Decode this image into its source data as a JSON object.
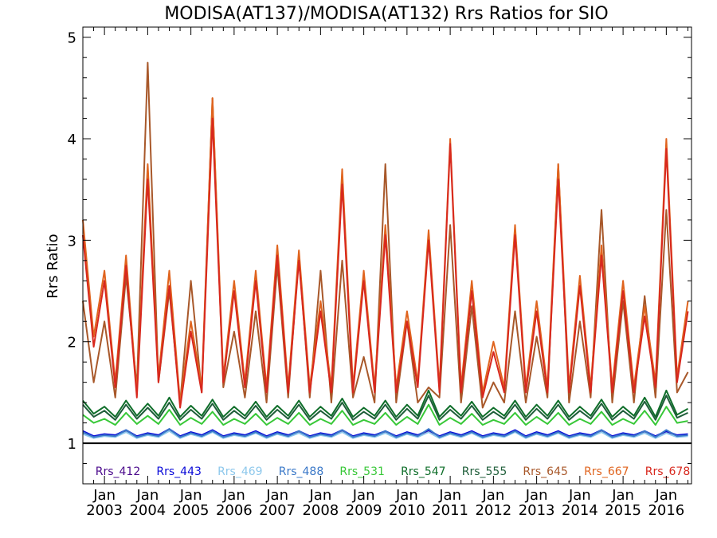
{
  "chart_data": {
    "type": "line",
    "title": "MODISA(AT137)/MODISA(AT132)  Rrs Ratios for SIO",
    "xlabel": "",
    "ylabel": "Rrs Ratio",
    "ylim": [
      0.6,
      5.1
    ],
    "yticks": [
      "1",
      "2",
      "3",
      "4",
      "5"
    ],
    "xlim": [
      "2002-07",
      "2016-08"
    ],
    "xticks": [
      {
        "month": "Jan",
        "year": "2003"
      },
      {
        "month": "Jan",
        "year": "2004"
      },
      {
        "month": "Jan",
        "year": "2005"
      },
      {
        "month": "Jan",
        "year": "2006"
      },
      {
        "month": "Jan",
        "year": "2007"
      },
      {
        "month": "Jan",
        "year": "2008"
      },
      {
        "month": "Jan",
        "year": "2009"
      },
      {
        "month": "Jan",
        "year": "2010"
      },
      {
        "month": "Jan",
        "year": "2011"
      },
      {
        "month": "Jan",
        "year": "2012"
      },
      {
        "month": "Jan",
        "year": "2013"
      },
      {
        "month": "Jan",
        "year": "2014"
      },
      {
        "month": "Jan",
        "year": "2015"
      },
      {
        "month": "Jan",
        "year": "2016"
      }
    ],
    "reference_line": 1,
    "grid": false,
    "legend_position": "bottom",
    "x": [
      "2002-07",
      "2002-10",
      "2003-01",
      "2003-04",
      "2003-07",
      "2003-10",
      "2004-01",
      "2004-04",
      "2004-07",
      "2004-10",
      "2005-01",
      "2005-04",
      "2005-07",
      "2005-10",
      "2006-01",
      "2006-04",
      "2006-07",
      "2006-10",
      "2007-01",
      "2007-04",
      "2007-07",
      "2007-10",
      "2008-01",
      "2008-04",
      "2008-07",
      "2008-10",
      "2009-01",
      "2009-04",
      "2009-07",
      "2009-10",
      "2010-01",
      "2010-04",
      "2010-07",
      "2010-10",
      "2011-01",
      "2011-04",
      "2011-07",
      "2011-10",
      "2012-01",
      "2012-04",
      "2012-07",
      "2012-10",
      "2013-01",
      "2013-04",
      "2013-07",
      "2013-10",
      "2014-01",
      "2014-04",
      "2014-07",
      "2014-10",
      "2015-01",
      "2015-04",
      "2015-07",
      "2015-10",
      "2016-01",
      "2016-04",
      "2016-07"
    ],
    "series": [
      {
        "name": "Rrs_412",
        "color": "#4b0a8c",
        "values": [
          1.1,
          1.06,
          1.08,
          1.07,
          1.12,
          1.06,
          1.09,
          1.07,
          1.13,
          1.06,
          1.1,
          1.07,
          1.12,
          1.06,
          1.09,
          1.07,
          1.11,
          1.06,
          1.1,
          1.07,
          1.11,
          1.06,
          1.09,
          1.07,
          1.12,
          1.06,
          1.09,
          1.07,
          1.11,
          1.06,
          1.1,
          1.07,
          1.12,
          1.06,
          1.1,
          1.07,
          1.11,
          1.06,
          1.09,
          1.07,
          1.12,
          1.06,
          1.1,
          1.07,
          1.11,
          1.06,
          1.09,
          1.07,
          1.12,
          1.06,
          1.09,
          1.07,
          1.11,
          1.06,
          1.11,
          1.07,
          1.08
        ]
      },
      {
        "name": "Rrs_443",
        "color": "#0a0ad8",
        "values": [
          1.12,
          1.07,
          1.09,
          1.08,
          1.13,
          1.07,
          1.1,
          1.08,
          1.14,
          1.07,
          1.11,
          1.08,
          1.13,
          1.07,
          1.1,
          1.08,
          1.12,
          1.07,
          1.11,
          1.08,
          1.12,
          1.07,
          1.1,
          1.08,
          1.13,
          1.07,
          1.1,
          1.08,
          1.12,
          1.07,
          1.11,
          1.08,
          1.13,
          1.07,
          1.11,
          1.08,
          1.12,
          1.07,
          1.1,
          1.08,
          1.13,
          1.07,
          1.11,
          1.08,
          1.12,
          1.07,
          1.1,
          1.08,
          1.13,
          1.07,
          1.1,
          1.08,
          1.12,
          1.07,
          1.12,
          1.08,
          1.09
        ]
      },
      {
        "name": "Rrs_469",
        "color": "#8ec8ec",
        "values": [
          1.09,
          1.05,
          1.07,
          1.06,
          1.11,
          1.05,
          1.08,
          1.06,
          1.12,
          1.05,
          1.09,
          1.06,
          1.11,
          1.05,
          1.08,
          1.06,
          1.1,
          1.05,
          1.09,
          1.06,
          1.1,
          1.05,
          1.08,
          1.06,
          1.11,
          1.05,
          1.08,
          1.06,
          1.1,
          1.05,
          1.09,
          1.06,
          1.11,
          1.05,
          1.09,
          1.06,
          1.1,
          1.05,
          1.08,
          1.06,
          1.11,
          1.05,
          1.09,
          1.06,
          1.1,
          1.05,
          1.08,
          1.06,
          1.11,
          1.05,
          1.08,
          1.06,
          1.1,
          1.05,
          1.1,
          1.06,
          1.07
        ]
      },
      {
        "name": "Rrs_488",
        "color": "#3a78c8",
        "values": [
          1.11,
          1.06,
          1.08,
          1.07,
          1.13,
          1.06,
          1.09,
          1.07,
          1.14,
          1.06,
          1.1,
          1.07,
          1.12,
          1.06,
          1.09,
          1.07,
          1.11,
          1.06,
          1.1,
          1.07,
          1.12,
          1.06,
          1.09,
          1.07,
          1.13,
          1.06,
          1.09,
          1.07,
          1.12,
          1.06,
          1.1,
          1.07,
          1.14,
          1.06,
          1.1,
          1.07,
          1.11,
          1.06,
          1.09,
          1.07,
          1.12,
          1.06,
          1.1,
          1.07,
          1.11,
          1.06,
          1.09,
          1.07,
          1.13,
          1.06,
          1.09,
          1.07,
          1.12,
          1.06,
          1.13,
          1.07,
          1.08
        ]
      },
      {
        "name": "Rrs_531",
        "color": "#38c838",
        "values": [
          1.28,
          1.2,
          1.24,
          1.18,
          1.3,
          1.19,
          1.27,
          1.19,
          1.33,
          1.18,
          1.25,
          1.19,
          1.31,
          1.18,
          1.24,
          1.19,
          1.29,
          1.18,
          1.25,
          1.19,
          1.3,
          1.18,
          1.24,
          1.19,
          1.32,
          1.18,
          1.23,
          1.19,
          1.3,
          1.18,
          1.26,
          1.19,
          1.38,
          1.18,
          1.25,
          1.19,
          1.29,
          1.18,
          1.23,
          1.19,
          1.3,
          1.18,
          1.26,
          1.19,
          1.3,
          1.18,
          1.24,
          1.19,
          1.31,
          1.18,
          1.24,
          1.19,
          1.32,
          1.18,
          1.36,
          1.2,
          1.22
        ]
      },
      {
        "name": "Rrs_547",
        "color": "#0f6e2a",
        "values": [
          1.42,
          1.29,
          1.36,
          1.26,
          1.42,
          1.27,
          1.39,
          1.27,
          1.45,
          1.26,
          1.37,
          1.27,
          1.43,
          1.26,
          1.36,
          1.27,
          1.41,
          1.26,
          1.37,
          1.27,
          1.42,
          1.26,
          1.36,
          1.27,
          1.44,
          1.26,
          1.35,
          1.27,
          1.42,
          1.26,
          1.38,
          1.27,
          1.52,
          1.26,
          1.37,
          1.27,
          1.41,
          1.26,
          1.35,
          1.27,
          1.42,
          1.26,
          1.38,
          1.27,
          1.42,
          1.26,
          1.36,
          1.27,
          1.43,
          1.26,
          1.36,
          1.27,
          1.45,
          1.26,
          1.52,
          1.28,
          1.34
        ]
      },
      {
        "name": "Rrs_555",
        "color": "#1f5e3a",
        "values": [
          1.38,
          1.26,
          1.32,
          1.23,
          1.38,
          1.24,
          1.35,
          1.24,
          1.4,
          1.23,
          1.33,
          1.24,
          1.39,
          1.23,
          1.32,
          1.24,
          1.37,
          1.23,
          1.33,
          1.24,
          1.38,
          1.23,
          1.32,
          1.24,
          1.4,
          1.23,
          1.31,
          1.24,
          1.38,
          1.23,
          1.34,
          1.24,
          1.47,
          1.23,
          1.33,
          1.24,
          1.37,
          1.23,
          1.31,
          1.24,
          1.38,
          1.23,
          1.34,
          1.24,
          1.38,
          1.23,
          1.32,
          1.24,
          1.39,
          1.23,
          1.32,
          1.24,
          1.41,
          1.23,
          1.47,
          1.25,
          1.3
        ]
      },
      {
        "name": "Rrs_645",
        "color": "#a8582a",
        "values": [
          2.4,
          1.6,
          2.2,
          1.45,
          2.65,
          1.55,
          4.75,
          1.6,
          2.5,
          1.4,
          2.6,
          1.5,
          4.4,
          1.55,
          2.1,
          1.45,
          2.3,
          1.4,
          2.75,
          1.45,
          2.85,
          1.45,
          2.7,
          1.4,
          2.8,
          1.45,
          1.85,
          1.4,
          3.75,
          1.4,
          2.2,
          1.4,
          1.55,
          1.45,
          3.15,
          1.4,
          2.35,
          1.35,
          1.6,
          1.4,
          2.3,
          1.4,
          2.05,
          1.45,
          3.75,
          1.4,
          2.2,
          1.45,
          3.3,
          1.4,
          2.4,
          1.4,
          2.45,
          1.45,
          3.3,
          1.5,
          1.7
        ]
      },
      {
        "name": "Rrs_667",
        "color": "#e0641e",
        "values": [
          3.2,
          2.05,
          2.7,
          1.6,
          2.85,
          1.5,
          3.75,
          1.65,
          2.7,
          1.4,
          2.2,
          1.55,
          4.4,
          1.65,
          2.6,
          1.6,
          2.7,
          1.55,
          2.95,
          1.55,
          2.9,
          1.55,
          2.4,
          1.55,
          3.7,
          1.55,
          2.7,
          1.55,
          3.15,
          1.55,
          2.3,
          1.6,
          3.1,
          1.55,
          4.0,
          1.55,
          2.6,
          1.5,
          2.0,
          1.55,
          3.15,
          1.55,
          2.4,
          1.55,
          3.75,
          1.55,
          2.65,
          1.55,
          2.95,
          1.55,
          2.6,
          1.55,
          2.35,
          1.6,
          4.0,
          1.65,
          2.4
        ]
      },
      {
        "name": "Rrs_678",
        "color": "#d8281e",
        "values": [
          3.05,
          1.95,
          2.6,
          1.55,
          2.75,
          1.45,
          3.6,
          1.6,
          2.55,
          1.35,
          2.1,
          1.5,
          4.2,
          1.6,
          2.5,
          1.55,
          2.6,
          1.5,
          2.85,
          1.5,
          2.8,
          1.5,
          2.3,
          1.5,
          3.55,
          1.5,
          2.6,
          1.5,
          3.05,
          1.5,
          2.2,
          1.55,
          3.0,
          1.5,
          3.95,
          1.5,
          2.5,
          1.45,
          1.9,
          1.5,
          3.05,
          1.5,
          2.3,
          1.5,
          3.6,
          1.5,
          2.55,
          1.5,
          2.85,
          1.5,
          2.5,
          1.5,
          2.25,
          1.55,
          3.9,
          1.6,
          2.3
        ]
      }
    ]
  }
}
